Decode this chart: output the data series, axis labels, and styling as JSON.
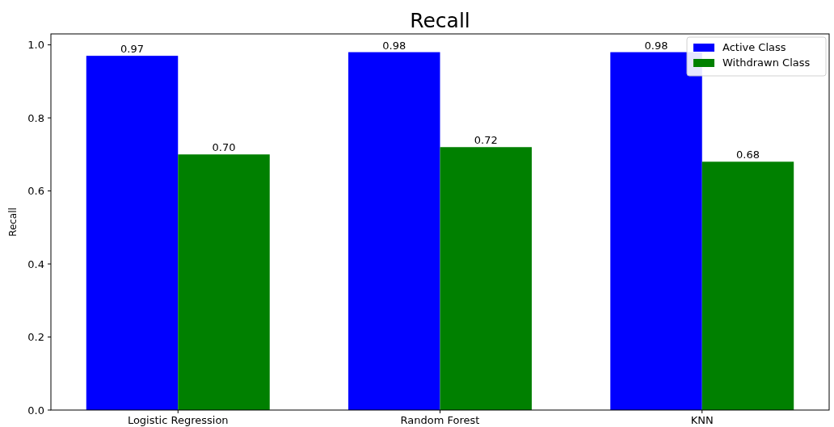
{
  "chart_data": {
    "type": "bar",
    "title": "Recall",
    "ylabel": "Recall",
    "categories": [
      "Logistic Regression",
      "Random Forest",
      "KNN"
    ],
    "series": [
      {
        "name": "Active Class",
        "color": "#0000ff",
        "values": [
          0.97,
          0.98,
          0.98
        ],
        "value_labels": [
          "0.97",
          "0.98",
          "0.98"
        ]
      },
      {
        "name": "Withdrawn Class",
        "color": "#008000",
        "values": [
          0.7,
          0.72,
          0.68
        ],
        "value_labels": [
          "0.70",
          "0.72",
          "0.68"
        ]
      }
    ],
    "ylim": [
      0,
      1.03
    ],
    "yticks": [
      {
        "value": 0,
        "label": "0.0"
      },
      {
        "value": 0.2,
        "label": "0.2"
      },
      {
        "value": 0.4,
        "label": "0.4"
      },
      {
        "value": 0.6,
        "label": "0.6"
      },
      {
        "value": 0.8,
        "label": "0.8"
      },
      {
        "value": 1.0,
        "label": "1.0"
      }
    ],
    "legend": "top right",
    "grid": false
  }
}
